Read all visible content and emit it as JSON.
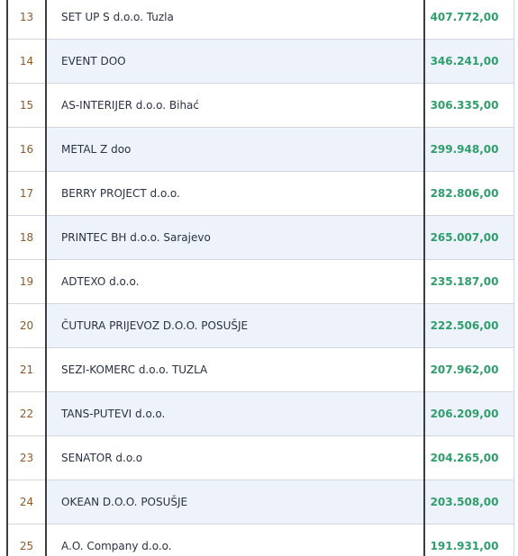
{
  "rows": [
    {
      "rank": "13",
      "name": "SET UP S d.o.o. Tuzla",
      "value": "407.772,00"
    },
    {
      "rank": "14",
      "name": "EVENT DOO",
      "value": "346.241,00"
    },
    {
      "rank": "15",
      "name": "AS-INTERIJER d.o.o. Bihać",
      "value": "306.335,00"
    },
    {
      "rank": "16",
      "name": "METAL Z doo",
      "value": "299.948,00"
    },
    {
      "rank": "17",
      "name": "BERRY PROJECT d.o.o.",
      "value": "282.806,00"
    },
    {
      "rank": "18",
      "name": "PRINTEC BH d.o.o. Sarajevo",
      "value": "265.007,00"
    },
    {
      "rank": "19",
      "name": "ADTEXO d.o.o.",
      "value": "235.187,00"
    },
    {
      "rank": "20",
      "name": "ČUTURA PRIJEVOZ D.O.O. POSUŠJE",
      "value": "222.506,00"
    },
    {
      "rank": "21",
      "name": "SEZI-KOMERC d.o.o. TUZLA",
      "value": "207.962,00"
    },
    {
      "rank": "22",
      "name": "TANS-PUTEVI d.o.o.",
      "value": "206.209,00"
    },
    {
      "rank": "23",
      "name": "SENATOR d.o.o",
      "value": "204.265,00"
    },
    {
      "rank": "24",
      "name": "OKEAN D.O.O. POSUŠJE",
      "value": "203.508,00"
    },
    {
      "rank": "25",
      "name": "A.O. Company d.o.o.",
      "value": "191.931,00"
    }
  ]
}
